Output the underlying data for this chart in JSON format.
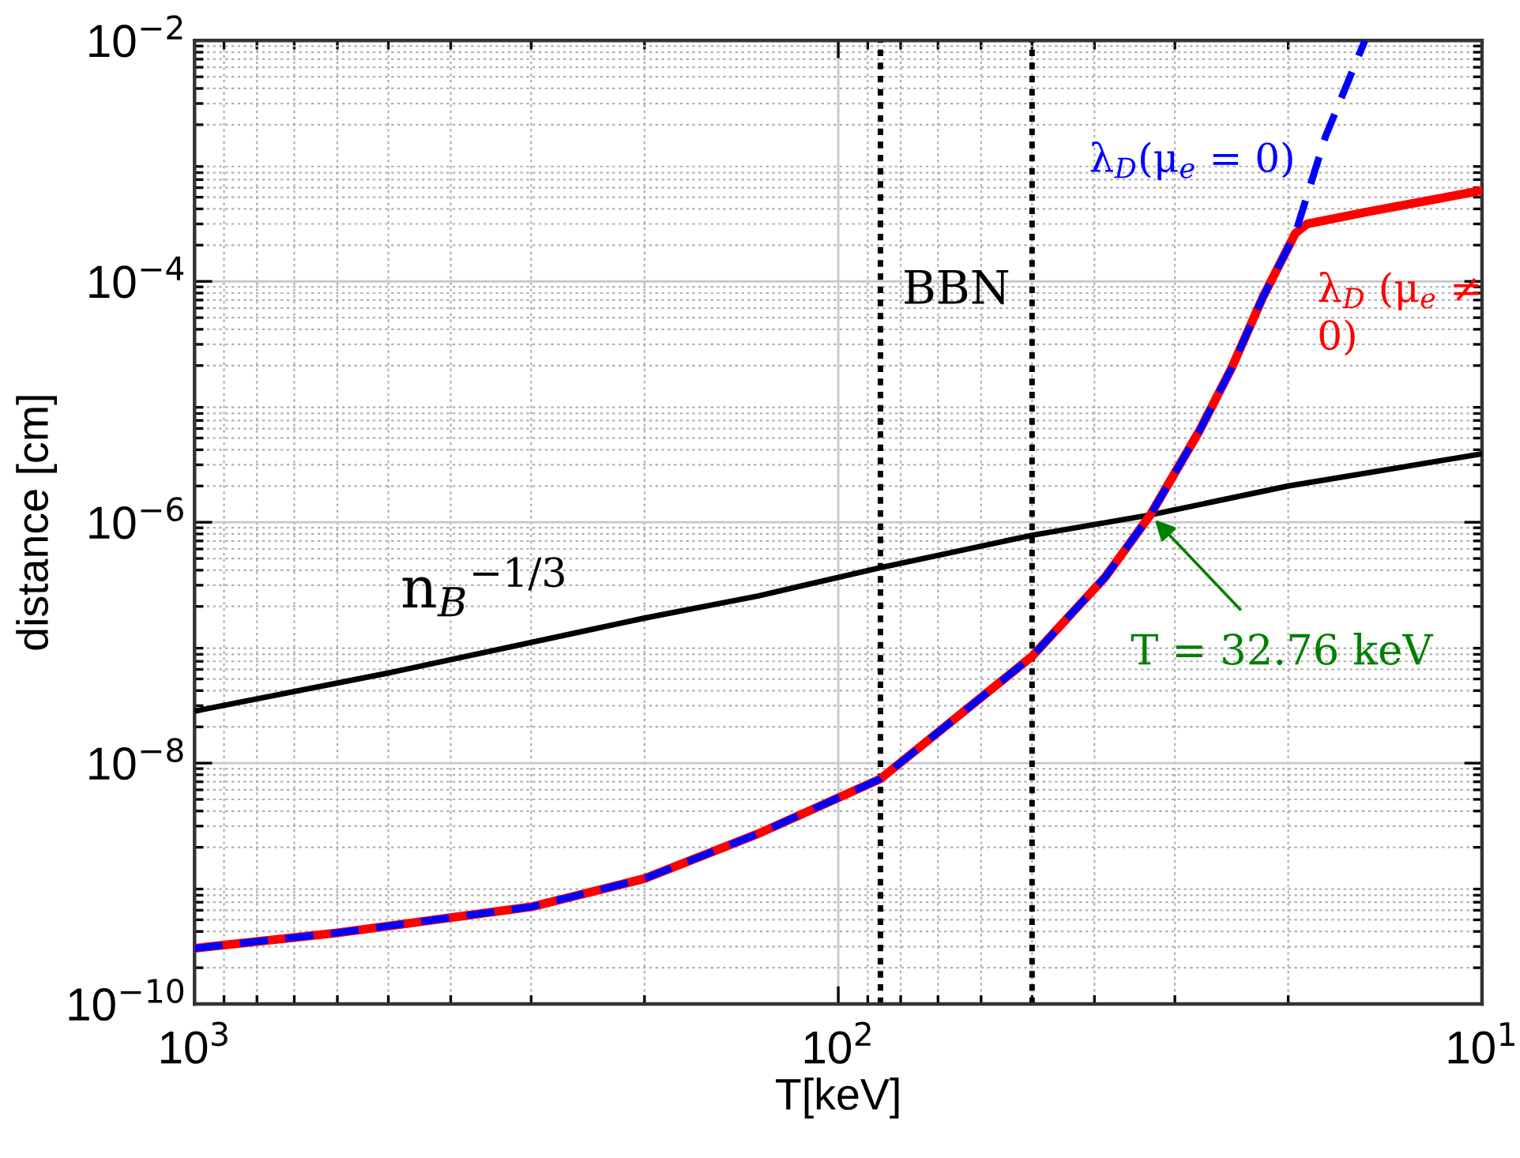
{
  "chart_data": {
    "type": "line",
    "xlabel": "T[keV]",
    "ylabel": "distance [cm]",
    "log": "xy",
    "grid": true,
    "legend": false,
    "xlim": [
      1000,
      10
    ],
    "ylim": [
      1e-10,
      0.01
    ],
    "xticks": [
      {
        "value": 1000,
        "label": "10$^{3}$"
      },
      {
        "value": 100,
        "label": "10$^{2}$"
      },
      {
        "value": 10,
        "label": "10$^{1}$"
      }
    ],
    "yticks": [
      {
        "value": 1e-10,
        "label": "10$^{−10}$"
      },
      {
        "value": 1e-08,
        "label": "10$^{−8}$"
      },
      {
        "value": 1e-06,
        "label": "10$^{−6}$"
      },
      {
        "value": 0.0001,
        "label": "10$^{−4}$"
      },
      {
        "value": 0.01,
        "label": "10$^{−2}$"
      }
    ],
    "series": [
      {
        "name": "n$_{B}$$^{−1/3}$",
        "color": "#000000",
        "line_style": "solid",
        "x": [
          1000,
          500,
          200,
          133,
          86,
          50,
          32.76,
          20,
          10
        ],
        "values": [
          2.7e-08,
          5.6e-08,
          1.6e-07,
          2.45e-07,
          4.2e-07,
          7.8e-07,
          1.15e-06,
          2e-06,
          3.7e-06
        ]
      },
      {
        "name": "λ$_{D}$ (μ$_{e}$ ≠ 0)",
        "color": "#ff0000",
        "line_style": "solid",
        "x": [
          1000,
          600,
          300,
          200,
          133,
          86,
          50,
          38.5,
          32.76,
          27.5,
          24.5,
          21.9,
          19.5,
          18.7,
          15,
          11.6,
          10
        ],
        "values": [
          2.9e-10,
          3.9e-10,
          6.4e-10,
          1.1e-09,
          2.6e-09,
          7.4e-09,
          7.7e-08,
          3.5e-07,
          1.15e-06,
          5.7e-06,
          1.9e-05,
          7.4e-05,
          0.00025,
          0.0003,
          0.00038,
          0.00049,
          0.00057
        ]
      },
      {
        "name": "λ$_{D}$(μ$_{e}$ = 0)",
        "color": "#0000ff",
        "line_style": "dashed",
        "x": [
          1000,
          600,
          300,
          200,
          133,
          86,
          50,
          38.5,
          32.76,
          27.5,
          24.5,
          21.9,
          19.5,
          17.5,
          15.2
        ],
        "values": [
          2.9e-10,
          3.9e-10,
          6.4e-10,
          1.1e-09,
          2.6e-09,
          7.4e-09,
          7.7e-08,
          3.5e-07,
          1.15e-06,
          5.7e-06,
          1.9e-05,
          7.4e-05,
          0.00025,
          0.0016,
          0.01
        ]
      }
    ],
    "ref_lines": [
      {
        "axis": "x",
        "value": 86,
        "color": "#000000",
        "line_style": "dotted"
      },
      {
        "axis": "x",
        "value": 50,
        "color": "#000000",
        "line_style": "dotted"
      }
    ],
    "annotations": [
      "BBN",
      {
        "text": "T = 32.76 keV",
        "x": 32.76,
        "y": 1.15e-06
      }
    ]
  }
}
